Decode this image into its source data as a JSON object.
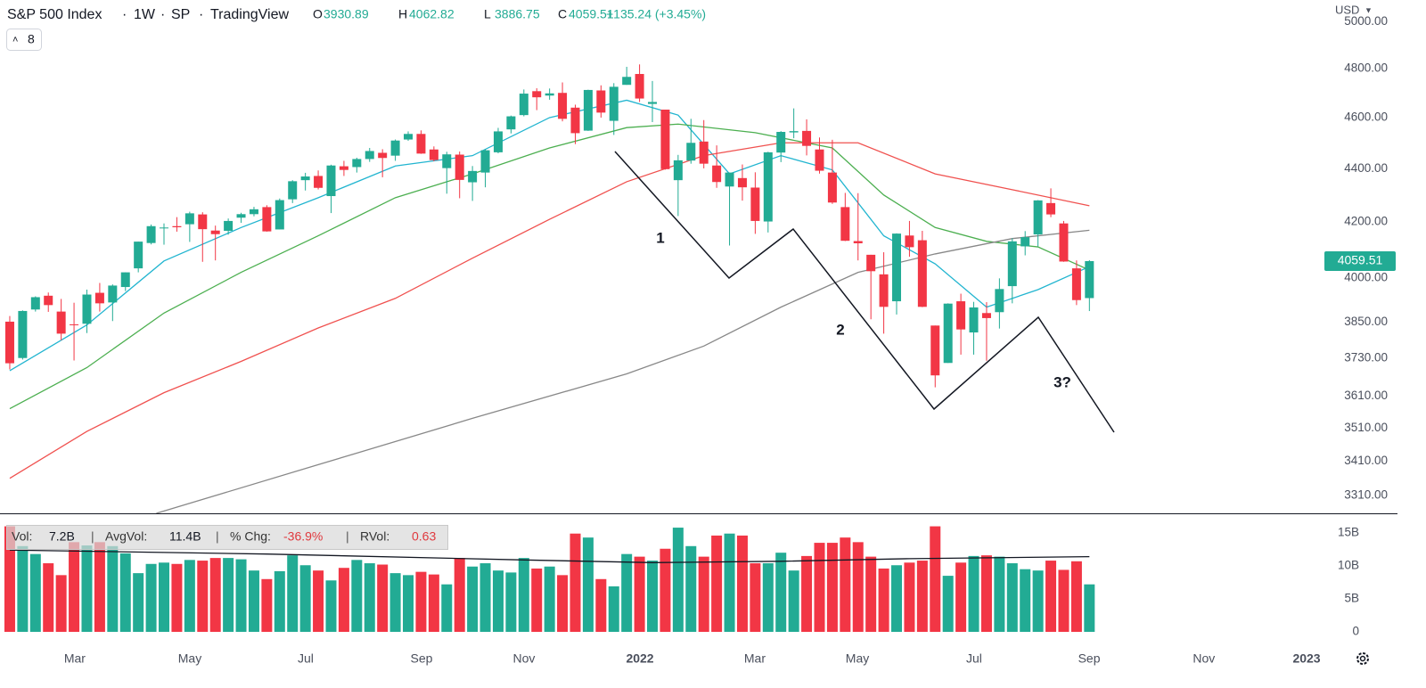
{
  "header": {
    "symbol": "S&P 500 Index",
    "interval": "1W",
    "exchange": "SP",
    "source": "TradingView",
    "ohlc": [
      {
        "key": "O",
        "value": "3930.89"
      },
      {
        "key": "H",
        "value": "4062.82"
      },
      {
        "key": "L",
        "value": "3886.75"
      },
      {
        "key": "C",
        "value": "4059.51"
      }
    ],
    "change": "+135.24 (+3.45%)",
    "indicator_count": "8",
    "currency": "USD"
  },
  "chart_data": {
    "type": "candlestick",
    "up_color": "#22ab94",
    "down_color": "#f23645",
    "log_scale": true,
    "open": [
      3851,
      3731,
      3892,
      3939,
      3885,
      3842,
      3844,
      3949,
      3916,
      3969,
      4034,
      4124,
      4179,
      4185,
      4192,
      4228,
      4169,
      4168,
      4216,
      4229,
      4255,
      4173,
      4284,
      4356,
      4372,
      4296,
      4409,
      4406,
      4437,
      4461,
      4450,
      4513,
      4535,
      4474,
      4402,
      4454,
      4348,
      4385,
      4463,
      4553,
      4610,
      4707,
      4689,
      4700,
      4640,
      4548,
      4710,
      4587,
      4733,
      4778,
      4655,
      4632,
      4356,
      4431,
      4505,
      4412,
      4332,
      4364,
      4328,
      4202,
      4462,
      4541,
      4547,
      4474,
      4385,
      4255,
      4131,
      4082,
      4013,
      3920,
      4151,
      4134,
      3838,
      3715,
      3920,
      3815,
      3880,
      3883,
      3972,
      4112,
      4155,
      4270,
      4195,
      4034,
      3930.89
    ],
    "high": [
      3870,
      3889,
      3937,
      3950,
      3928,
      3915,
      3960,
      3983,
      3978,
      4020,
      4129,
      4191,
      4195,
      4218,
      4238,
      4236,
      4187,
      4213,
      4234,
      4256,
      4262,
      4287,
      4356,
      4384,
      4393,
      4415,
      4430,
      4442,
      4480,
      4475,
      4513,
      4545,
      4549,
      4486,
      4465,
      4466,
      4410,
      4475,
      4559,
      4608,
      4714,
      4719,
      4718,
      4743,
      4652,
      4713,
      4731,
      4740,
      4808,
      4818,
      4749,
      4632,
      4453,
      4595,
      4590,
      4490,
      4385,
      4416,
      4386,
      4465,
      4546,
      4637,
      4593,
      4521,
      4512,
      4308,
      4307,
      4082,
      4091,
      4159,
      4204,
      4168,
      3838,
      3913,
      3946,
      3918,
      3917,
      3999,
      4141,
      4167,
      4281,
      4325,
      4204,
      4062,
      4062.82
    ],
    "low": [
      3694,
      3726,
      3885,
      3884,
      3789,
      3723,
      3813,
      3885,
      3853,
      3955,
      4020,
      4119,
      4118,
      4165,
      4128,
      4057,
      4062,
      4154,
      4197,
      4221,
      4165,
      4173,
      4270,
      4317,
      4321,
      4233,
      4372,
      4385,
      4426,
      4367,
      4430,
      4508,
      4457,
      4428,
      4305,
      4288,
      4278,
      4329,
      4459,
      4537,
      4605,
      4630,
      4672,
      4585,
      4495,
      4547,
      4600,
      4531,
      4733,
      4663,
      4582,
      4396,
      4222,
      4419,
      4401,
      4327,
      4115,
      4279,
      4157,
      4162,
      4425,
      4518,
      4451,
      4381,
      4267,
      4131,
      4062,
      3859,
      3811,
      3875,
      4075,
      3900,
      3637,
      3715,
      3742,
      3742,
      3722,
      3828,
      3913,
      4080,
      4112,
      4218,
      4057,
      3907,
      3886.75
    ],
    "close": [
      3714,
      3887,
      3934,
      3907,
      3811,
      3841,
      3943,
      3913,
      3974,
      4020,
      4129,
      4185,
      4180,
      4181,
      4232,
      4174,
      4156,
      4204,
      4229,
      4247,
      4166,
      4281,
      4352,
      4370,
      4327,
      4412,
      4395,
      4437,
      4468,
      4441,
      4509,
      4535,
      4458,
      4433,
      4455,
      4357,
      4391,
      4471,
      4545,
      4605,
      4697,
      4682,
      4698,
      4595,
      4538,
      4712,
      4620,
      4725,
      4766,
      4677,
      4663,
      4398,
      4432,
      4500,
      4419,
      4349,
      4385,
      4329,
      4204,
      4463,
      4543,
      4546,
      4488,
      4392,
      4272,
      4132,
      4123,
      4024,
      3901,
      4158,
      4109,
      3901,
      3675,
      3912,
      3825,
      3899,
      3863,
      3962,
      4130,
      4145,
      4280,
      4228,
      4058,
      3924,
      4059.51
    ],
    "xlim": [
      -0.76,
      107.97
    ],
    "xticks": [
      {
        "value": 5.06,
        "label": "Mar"
      },
      {
        "value": 14.01,
        "label": "May"
      },
      {
        "value": 23.02,
        "label": "Jul"
      },
      {
        "value": 32.04,
        "label": "Sep"
      },
      {
        "value": 40.01,
        "label": "Nov"
      },
      {
        "value": 49.03,
        "label": "2022"
      },
      {
        "value": 57.97,
        "label": "Mar"
      },
      {
        "value": 65.95,
        "label": "May"
      },
      {
        "value": 75.03,
        "label": "Jul"
      },
      {
        "value": 83.98,
        "label": "Sep"
      },
      {
        "value": 92.91,
        "label": "Nov"
      },
      {
        "value": 100.9,
        "label": "2023"
      }
    ],
    "ylim": [
      3259,
      5096
    ],
    "yticks": [
      {
        "value": 3310,
        "label": "3310.00"
      },
      {
        "value": 3410,
        "label": "3410.00"
      },
      {
        "value": 3510,
        "label": "3510.00"
      },
      {
        "value": 3610,
        "label": "3610.00"
      },
      {
        "value": 3730,
        "label": "3730.00"
      },
      {
        "value": 3850,
        "label": "3850.00"
      },
      {
        "value": 4000,
        "label": "4000.00"
      },
      {
        "value": 4200,
        "label": "4200.00"
      },
      {
        "value": 4400,
        "label": "4400.00"
      },
      {
        "value": 4600,
        "label": "4600.00"
      },
      {
        "value": 4800,
        "label": "4800.00"
      },
      {
        "value": 5000,
        "label": "5000.00"
      }
    ],
    "last_price_label": "4059.51",
    "moving_averages": [
      {
        "color": "#22b5d0",
        "x": [
          0,
          6,
          12,
          18,
          24,
          30,
          36,
          42,
          48,
          52,
          56,
          60,
          64,
          68,
          72,
          76,
          80,
          84
        ],
        "values": [
          3690,
          3840,
          4060,
          4180,
          4290,
          4410,
          4450,
          4600,
          4670,
          4610,
          4380,
          4450,
          4395,
          4150,
          4050,
          3900,
          3960,
          4040
        ]
      },
      {
        "color": "#4caf50",
        "x": [
          0,
          6,
          12,
          18,
          24,
          30,
          36,
          42,
          48,
          52,
          58,
          64,
          68,
          72,
          76,
          80,
          84
        ],
        "values": [
          3570,
          3700,
          3880,
          4020,
          4150,
          4290,
          4380,
          4480,
          4560,
          4574,
          4540,
          4480,
          4300,
          4180,
          4130,
          4110,
          4028
        ]
      },
      {
        "color": "#f0514f",
        "x": [
          0,
          6,
          12,
          18,
          24,
          30,
          36,
          42,
          48,
          54,
          60,
          66,
          72,
          78,
          84
        ],
        "values": [
          3360,
          3500,
          3620,
          3720,
          3830,
          3930,
          4070,
          4210,
          4350,
          4450,
          4500,
          4500,
          4380,
          4320,
          4260
        ]
      },
      {
        "color": "#888888",
        "x": [
          11.4,
          24,
          36,
          48,
          54,
          60,
          66,
          72,
          78,
          84
        ],
        "values": [
          3259,
          3400,
          3540,
          3680,
          3770,
          3900,
          4020,
          4085,
          4140,
          4170
        ]
      }
    ],
    "annotations": [
      "1",
      "2",
      "3?"
    ],
    "volume": {
      "values": [
        16,
        13,
        11.8,
        10.4,
        8.6,
        13.6,
        13.1,
        13.6,
        13,
        11.9,
        8.9,
        10.3,
        10.5,
        10.3,
        10.9,
        10.8,
        11.2,
        11.2,
        11,
        9.3,
        8,
        9.2,
        11.6,
        10.1,
        9.3,
        7.8,
        9.7,
        10.9,
        10.4,
        10.2,
        8.9,
        8.6,
        9.1,
        8.7,
        7.2,
        11.2,
        9.9,
        10.4,
        9.3,
        9,
        11.2,
        9.6,
        9.9,
        8.6,
        14.9,
        14.3,
        8,
        6.9,
        11.8,
        11.4,
        10.8,
        12.6,
        15.8,
        13,
        11.4,
        14.6,
        14.9,
        14.6,
        10.4,
        10.4,
        12,
        9.3,
        11.5,
        13.5,
        13.5,
        14.3,
        13.6,
        11.4,
        9.6,
        10.1,
        10.5,
        10.8,
        16,
        8.5,
        10.5,
        11.5,
        11.6,
        11.4,
        10.4,
        9.5,
        9.3,
        10.8,
        9.4,
        10.7,
        7.2
      ],
      "ylim": [
        0,
        17.7
      ],
      "yticks": [
        0,
        {
          "value": 5,
          "label": "5B"
        },
        {
          "value": 10,
          "label": "10B"
        },
        {
          "value": 15,
          "label": "15B"
        }
      ],
      "average": {
        "color": "#131722",
        "x": [
          0,
          20,
          40,
          50,
          60,
          70,
          84
        ],
        "values": [
          12.4,
          11.8,
          10.9,
          10.5,
          10.7,
          11.1,
          11.4
        ]
      },
      "legend": [
        {
          "key": "Vol:",
          "value": "7.2B"
        },
        {
          "key": "AvgVol:",
          "value": "11.4B"
        },
        {
          "key": "% Chg:",
          "value": "-36.9%"
        },
        {
          "key": "RVol:",
          "value": "0.63"
        }
      ]
    }
  }
}
